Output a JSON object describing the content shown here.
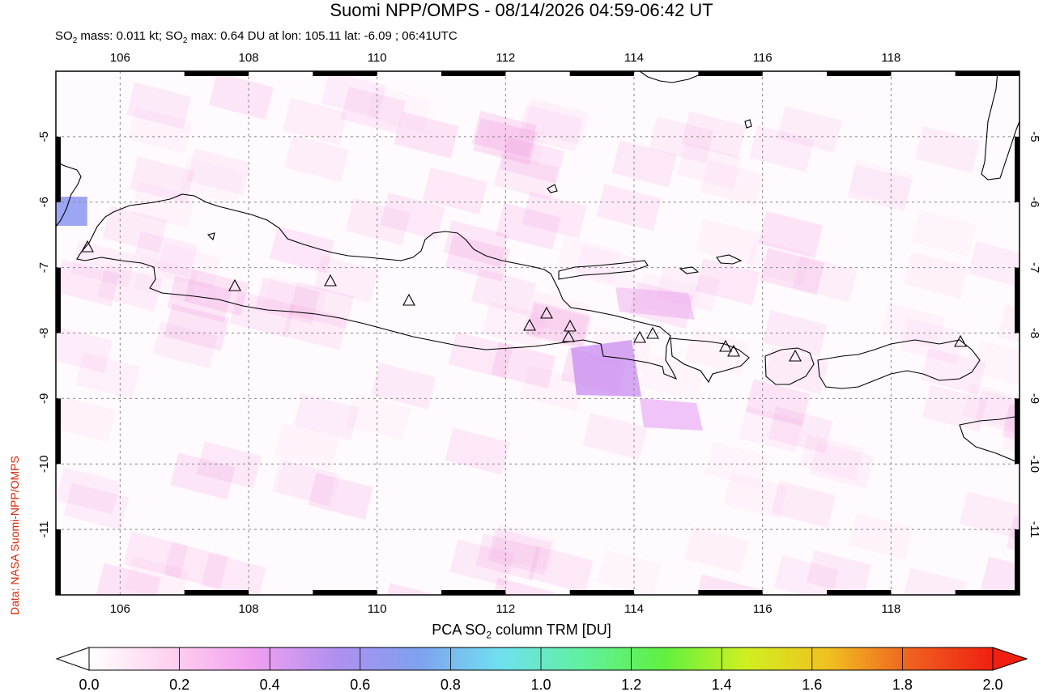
{
  "title": "Suomi NPP/OMPS - 08/14/2026 04:59-06:42 UT",
  "subtitle": {
    "prefix": "SO",
    "sub": "2",
    "mid": " mass: 0.011 kt; SO",
    "sub2": "2",
    "rest": " max: 0.64 DU at lon: 105.11 lat: -6.09 ; 06:41UTC"
  },
  "credit": "Data: NASA Suomi-NPP/OMPS",
  "colorbar": {
    "title_prefix": "PCA SO",
    "title_sub": "2",
    "title_rest": " column TRM [DU]",
    "ticks": [
      "0.0",
      "0.2",
      "0.4",
      "0.6",
      "0.8",
      "1.0",
      "1.2",
      "1.4",
      "1.6",
      "1.8",
      "2.0"
    ],
    "colors": [
      "#ffffff",
      "#ffd0f0",
      "#f0a0f0",
      "#b090f0",
      "#80a0f0",
      "#70e0f0",
      "#60f0a0",
      "#60f040",
      "#d0f020",
      "#f0c020",
      "#f06020",
      "#f02010"
    ]
  },
  "map": {
    "lon_ticks": [
      "106",
      "108",
      "110",
      "112",
      "114",
      "116",
      "118"
    ],
    "lat_ticks": [
      "-5",
      "-6",
      "-7",
      "-8",
      "-9",
      "-10",
      "-11"
    ],
    "lon_range": [
      105,
      120
    ],
    "lat_range": [
      -12,
      -4
    ],
    "volcano_marker": "triangle-icon",
    "so2_max_location": {
      "lon": 105.11,
      "lat": -6.09,
      "value": 0.64
    }
  }
}
